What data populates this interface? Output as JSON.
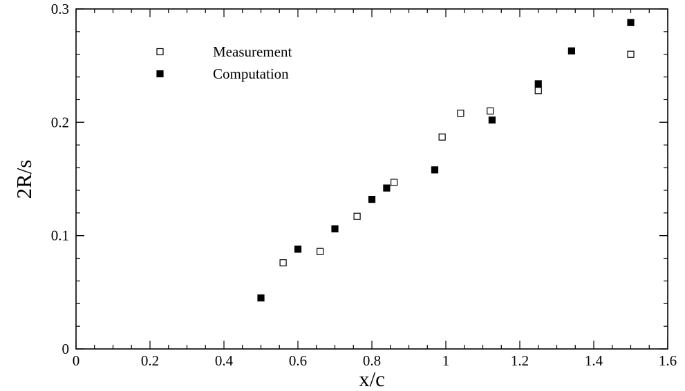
{
  "chart_data": {
    "type": "scatter",
    "title": "",
    "xlabel": "x/c",
    "ylabel": "2R/s",
    "xlim": [
      0,
      1.6
    ],
    "ylim": [
      0,
      0.3
    ],
    "x_major_ticks": [
      0,
      0.2,
      0.4,
      0.6,
      0.8,
      1,
      1.2,
      1.4,
      1.6
    ],
    "x_tick_labels": [
      "0",
      "0.2",
      "0.4",
      "0.6",
      "0.8",
      "1",
      "1.2",
      "1.4",
      "1.6"
    ],
    "y_major_ticks": [
      0,
      0.1,
      0.2,
      0.3
    ],
    "y_tick_labels": [
      "0",
      "0.1",
      "0.2",
      "0.3"
    ],
    "x_minor_step": 0.05,
    "y_minor_step": 0.02,
    "grid": false,
    "legend_position": "top-left",
    "series": [
      {
        "name": "Measurement",
        "marker": "open-square",
        "color": "#000000",
        "x": [
          0.56,
          0.66,
          0.76,
          0.86,
          0.99,
          1.04,
          1.12,
          1.25,
          1.5
        ],
        "y": [
          0.076,
          0.086,
          0.117,
          0.147,
          0.187,
          0.208,
          0.21,
          0.228,
          0.26
        ]
      },
      {
        "name": "Computation",
        "marker": "filled-square",
        "color": "#000000",
        "x": [
          0.5,
          0.6,
          0.7,
          0.8,
          0.84,
          0.97,
          1.125,
          1.25,
          1.34,
          1.5
        ],
        "y": [
          0.045,
          0.088,
          0.106,
          0.132,
          0.142,
          0.158,
          0.202,
          0.234,
          0.263,
          0.288
        ]
      }
    ]
  }
}
